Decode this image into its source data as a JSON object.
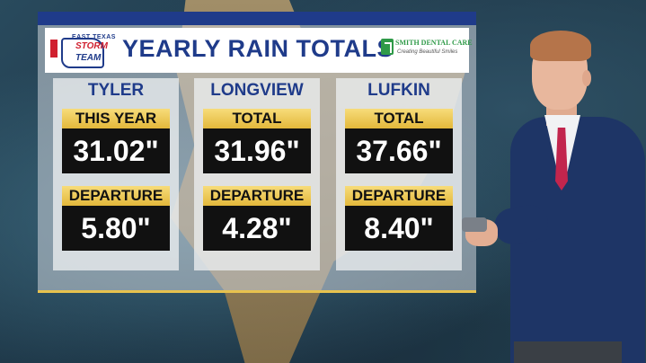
{
  "logo": {
    "line1": "EAST TEXAS",
    "line2": "STORM",
    "line3": "TEAM"
  },
  "title": "YEARLY RAIN TOTALS",
  "sponsor": {
    "name": "SMITH DENTAL CARE",
    "tagline": "Creating Beautiful Smiles"
  },
  "columns": [
    {
      "city": "TYLER",
      "label1": "THIS YEAR",
      "value1": "31.02\"",
      "label2": "DEPARTURE",
      "value2": "5.80\""
    },
    {
      "city": "LONGVIEW",
      "label1": "TOTAL",
      "value1": "31.96\"",
      "label2": "DEPARTURE",
      "value2": "4.28\""
    },
    {
      "city": "LUFKIN",
      "label1": "TOTAL",
      "value1": "37.66\"",
      "label2": "DEPARTURE",
      "value2": "8.40\""
    }
  ],
  "colors": {
    "brand_blue": "#1f3b8a",
    "brand_red": "#d0202f",
    "label_gold": "#e3b83b",
    "value_bg": "#111111",
    "sponsor_green": "#2f9a48"
  }
}
